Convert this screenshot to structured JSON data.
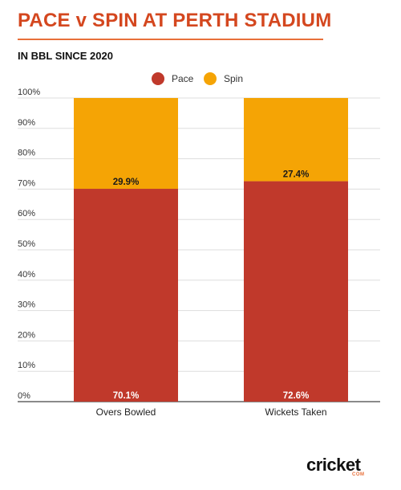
{
  "title": "PACE v SPIN AT PERTH STADIUM",
  "subtitle": "IN BBL SINCE 2020",
  "colors": {
    "accent": "#d4471f",
    "pace": "#c0392b",
    "spin": "#f5a405"
  },
  "brand": {
    "word": "cricket",
    "sub": "COM"
  },
  "chart_data": {
    "type": "bar",
    "stacked": true,
    "categories": [
      "Overs Bowled",
      "Wickets Taken"
    ],
    "series": [
      {
        "name": "Pace",
        "values": [
          70.1,
          72.6
        ],
        "labels": [
          "70.1%",
          "72.6%"
        ],
        "color": "#c0392b"
      },
      {
        "name": "Spin",
        "values": [
          29.9,
          27.4
        ],
        "labels": [
          "29.9%",
          "27.4%"
        ],
        "color": "#f5a405"
      }
    ],
    "ylim": [
      0,
      100
    ],
    "yticks": [
      "0%",
      "10%",
      "20%",
      "30%",
      "40%",
      "50%",
      "60%",
      "70%",
      "80%",
      "90%",
      "100%"
    ],
    "grid": true,
    "legend": "top-center"
  }
}
